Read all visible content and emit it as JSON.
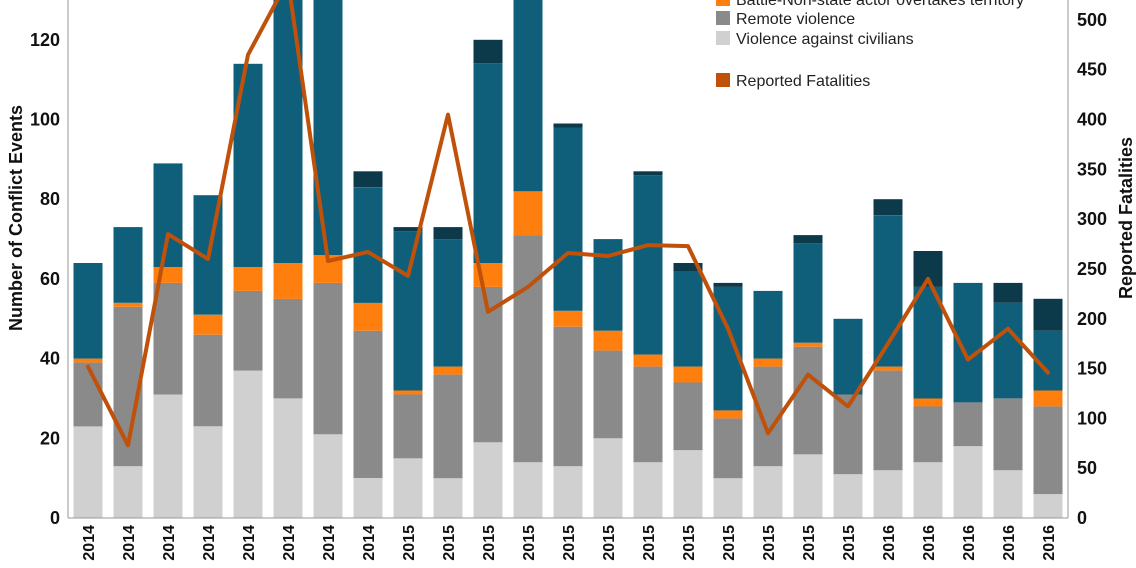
{
  "chart_data": {
    "type": "bar",
    "stacked": true,
    "ylabel": "Number of Conflict Events",
    "y2label": "Reported Fatalities",
    "ylim": [
      0,
      130
    ],
    "y2lim": [
      0,
      520
    ],
    "yticks": [
      0,
      20,
      40,
      60,
      80,
      100,
      120
    ],
    "y2ticks": [
      0,
      50,
      100,
      150,
      200,
      250,
      300,
      350,
      400,
      450,
      500
    ],
    "categories": [
      "2014",
      "2014",
      "2014",
      "2014",
      "2014",
      "2014",
      "2014",
      "2014",
      "2015",
      "2015",
      "2015",
      "2015",
      "2015",
      "2015",
      "2015",
      "2015",
      "2015",
      "2015",
      "2015",
      "2015",
      "2016",
      "2016",
      "2016",
      "2016",
      "2016"
    ],
    "series": [
      {
        "name": "Violence against civilians",
        "color": "#d0d0d0",
        "values": [
          23,
          13,
          31,
          23,
          37,
          30,
          21,
          10,
          15,
          10,
          19,
          14,
          13,
          20,
          14,
          17,
          10,
          13,
          16,
          11,
          12,
          14,
          18,
          12,
          6
        ]
      },
      {
        "name": "Remote violence",
        "color": "#8a8a8a",
        "values": [
          16,
          40,
          28,
          23,
          20,
          25,
          38,
          37,
          16,
          26,
          39,
          57,
          35,
          22,
          24,
          17,
          15,
          25,
          27,
          20,
          25,
          14,
          11,
          18,
          22
        ]
      },
      {
        "name": "Battle-Non-state actor overtakes territory",
        "color": "#ff7f0e",
        "values": [
          1,
          1,
          4,
          5,
          6,
          9,
          7,
          7,
          1,
          2,
          6,
          11,
          4,
          5,
          3,
          4,
          2,
          2,
          1,
          0,
          1,
          2,
          0,
          0,
          4
        ]
      },
      {
        "name": "",
        "color": "#0f5f7a",
        "values": [
          24,
          19,
          26,
          30,
          51,
          73,
          72,
          29,
          40,
          32,
          50,
          73,
          46,
          23,
          45,
          24,
          31,
          17,
          25,
          19,
          38,
          28,
          30,
          24,
          15
        ]
      },
      {
        "name": "",
        "color": "#0d3a4a",
        "values": [
          0,
          0,
          0,
          0,
          0,
          2,
          0,
          4,
          1,
          3,
          6,
          0,
          1,
          0,
          1,
          2,
          1,
          0,
          2,
          0,
          4,
          9,
          0,
          5,
          8
        ]
      }
    ],
    "line": {
      "name": "Reported Fatalities",
      "color": "#c0510a",
      "axis": "right",
      "values": [
        152,
        73,
        285,
        260,
        465,
        540,
        258,
        267,
        243,
        405,
        207,
        232,
        266,
        263,
        274,
        273,
        190,
        85,
        144,
        112,
        175,
        240,
        159,
        190,
        146
      ]
    },
    "legend": {
      "position": "top-right",
      "entries": [
        {
          "label": "Battle-Non-state actor overtakes territory",
          "color": "#ff7f0e"
        },
        {
          "label": "Remote violence",
          "color": "#8a8a8a"
        },
        {
          "label": "Violence against civilians",
          "color": "#d0d0d0"
        },
        {
          "label": "Reported Fatalities",
          "color": "#c0510a"
        }
      ]
    },
    "grid": false
  }
}
